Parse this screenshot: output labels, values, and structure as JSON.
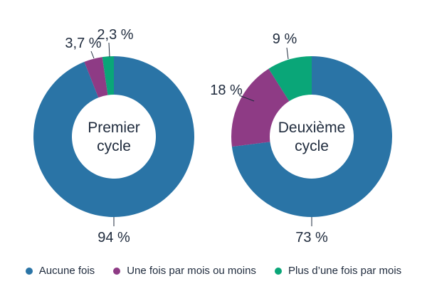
{
  "chart_data": [
    {
      "type": "pie",
      "variant": "donut",
      "title": "Premier cycle",
      "title_lines": [
        "Premier",
        "cycle"
      ],
      "categories": [
        "Aucune fois",
        "Une fois par mois ou moins",
        "Plus d’une fois par mois"
      ],
      "values": [
        94,
        3.7,
        2.3
      ],
      "labels": [
        "94 %",
        "3,7 %",
        "2,3 %"
      ]
    },
    {
      "type": "pie",
      "variant": "donut",
      "title": "Deuxième cycle",
      "title_lines": [
        "Deuxième",
        "cycle"
      ],
      "categories": [
        "Aucune fois",
        "Une fois par mois ou moins",
        "Plus d’une fois par mois"
      ],
      "values": [
        73,
        18,
        9
      ],
      "labels": [
        "73 %",
        "18 %",
        "9 %"
      ]
    }
  ],
  "legend": {
    "position": "bottom",
    "items": [
      {
        "label": "Aucune fois",
        "color": "#2a74a6"
      },
      {
        "label": "Une fois par mois ou moins",
        "color": "#8e3b85"
      },
      {
        "label": "Plus d’une fois par mois",
        "color": "#0aa678"
      }
    ]
  },
  "colors": {
    "series": [
      "#2a74a6",
      "#8e3b85",
      "#0aa678"
    ],
    "text": "#1f2b3d"
  }
}
